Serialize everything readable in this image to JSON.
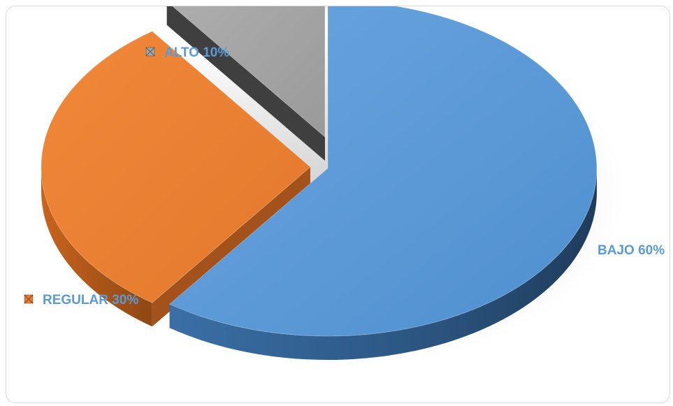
{
  "chart_data": {
    "type": "pie",
    "style": "3d-exploded",
    "title": "",
    "slices": [
      {
        "label": "BAJO",
        "value": 60,
        "display": "BAJO 60%",
        "color": "#5b9bd5"
      },
      {
        "label": "REGULAR",
        "value": 30,
        "display": "REGULAR 30%",
        "color": "#ed7d31"
      },
      {
        "label": "ALTO",
        "value": 10,
        "display": "ALTO 10%",
        "color": "#a5a5a5"
      }
    ],
    "label_color": "#5b9bd5",
    "legend": "none"
  }
}
